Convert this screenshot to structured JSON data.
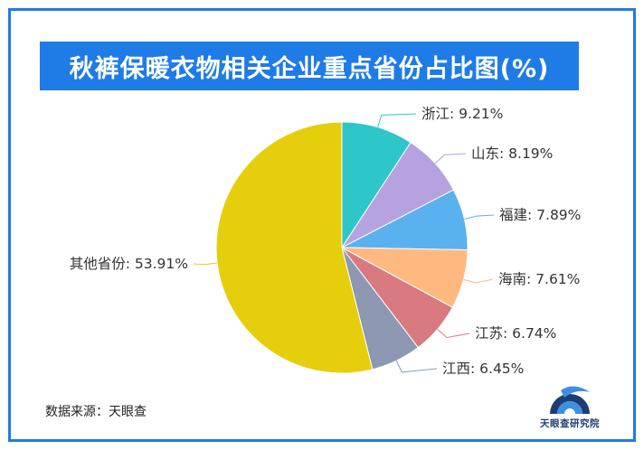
{
  "title": "秋裤保暖衣物相关企业重点省份占比图(%)",
  "source": "数据来源：天眼查",
  "logo_text": "天眼查研究院",
  "colors": {
    "frame": "#1f7be6",
    "title_bg": "#1f7be6"
  },
  "chart_data": {
    "type": "pie",
    "unit": "%",
    "slices": [
      {
        "label": "浙江",
        "value": 9.21,
        "display": "浙江: 9.21%",
        "color": "#2ec7c9"
      },
      {
        "label": "山东",
        "value": 8.19,
        "display": "山东: 8.19%",
        "color": "#b6a2de"
      },
      {
        "label": "福建",
        "value": 7.89,
        "display": "福建: 7.89%",
        "color": "#5ab1ef"
      },
      {
        "label": "海南",
        "value": 7.61,
        "display": "海南: 7.61%",
        "color": "#ffb980"
      },
      {
        "label": "江苏",
        "value": 6.74,
        "display": "江苏: 6.74%",
        "color": "#d87a80"
      },
      {
        "label": "江西",
        "value": 6.45,
        "display": "江西: 6.45%",
        "color": "#8d98b3"
      },
      {
        "label": "其他省份",
        "value": 53.91,
        "display": "其他省份: 53.91%",
        "color": "#e5cf0d"
      }
    ]
  }
}
